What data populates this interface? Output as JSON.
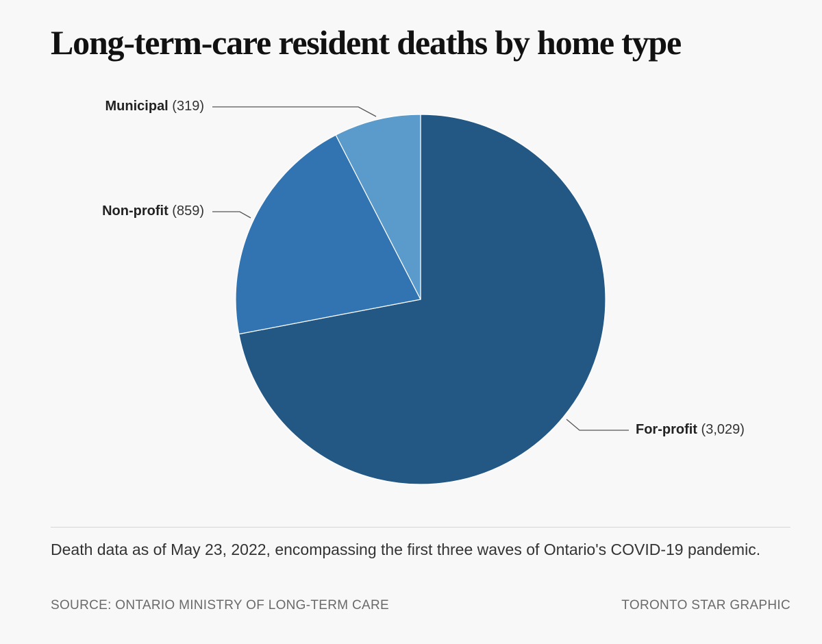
{
  "title": "Long-term-care resident deaths by home type",
  "chart_data": {
    "type": "pie",
    "title": "Long-term-care resident deaths by home type",
    "start_angle_deg": 0,
    "direction": "clockwise",
    "slices": [
      {
        "label": "For-profit",
        "value": 3029,
        "value_text": "(3,029)",
        "color": "#235784"
      },
      {
        "label": "Non-profit",
        "value": 859,
        "value_text": "(859)",
        "color": "#3174b1"
      },
      {
        "label": "Municipal",
        "value": 319,
        "value_text": "(319)",
        "color": "#5a9bcb"
      }
    ],
    "slice_border_color": "#ffffff"
  },
  "footer": {
    "note": "Death data as of May 23, 2022, encompassing the first three waves of Ontario's COVID-19 pandemic.",
    "source": "SOURCE: ONTARIO MINISTRY OF LONG-TERM CARE",
    "credit": "TORONTO STAR GRAPHIC"
  },
  "colors": {
    "background": "#f8f8f8",
    "leader_line": "#555555"
  }
}
